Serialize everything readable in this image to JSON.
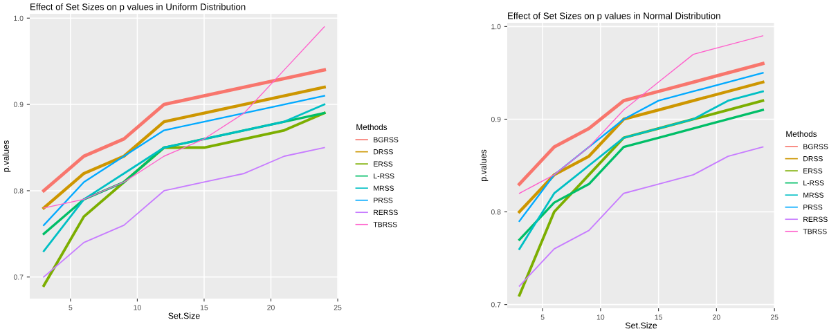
{
  "chart_data": [
    {
      "type": "line",
      "title": "Effect of Set Sizes on p values in Uniform Distribution",
      "xlabel": "Set.Size",
      "ylabel": "p.values",
      "legend_title": "Methods",
      "legend": "right",
      "grid": true,
      "x": [
        3,
        6,
        9,
        12,
        15,
        18,
        21,
        24
      ],
      "xlim": [
        1.95,
        25.05
      ],
      "xticks": [
        5,
        10,
        15,
        20,
        25
      ],
      "ylim": [
        0.675,
        1.005
      ],
      "yticks": [
        {
          "value": 0.7,
          "label": "0.7"
        },
        {
          "value": 0.8,
          "label": "0.8"
        },
        {
          "value": 0.9,
          "label": "0.9"
        },
        {
          "value": 1.0,
          "label": "1.0"
        }
      ],
      "series": [
        {
          "name": "BGRSS",
          "color": "#f8766d",
          "values": [
            0.8,
            0.84,
            0.86,
            0.9,
            0.91,
            0.92,
            0.93,
            0.94
          ]
        },
        {
          "name": "DRSS",
          "color": "#cd9600",
          "values": [
            0.78,
            0.82,
            0.84,
            0.88,
            0.89,
            0.9,
            0.91,
            0.92
          ]
        },
        {
          "name": "ERSS",
          "color": "#7cae00",
          "values": [
            0.69,
            0.77,
            0.81,
            0.85,
            0.85,
            0.86,
            0.87,
            0.89
          ]
        },
        {
          "name": "L-RSS",
          "color": "#00be67",
          "values": [
            0.75,
            0.79,
            0.81,
            0.85,
            0.86,
            0.87,
            0.88,
            0.89
          ]
        },
        {
          "name": "MRSS",
          "color": "#00bfc4",
          "values": [
            0.73,
            0.79,
            0.82,
            0.85,
            0.86,
            0.87,
            0.88,
            0.9
          ]
        },
        {
          "name": "PRSS",
          "color": "#00a9ff",
          "values": [
            0.76,
            0.81,
            0.84,
            0.87,
            0.88,
            0.89,
            0.9,
            0.91
          ]
        },
        {
          "name": "RERSS",
          "color": "#c77cff",
          "values": [
            0.7,
            0.74,
            0.76,
            0.8,
            0.81,
            0.82,
            0.84,
            0.85
          ]
        },
        {
          "name": "TBRSS",
          "color": "#ff61cc",
          "values": [
            0.78,
            0.79,
            0.81,
            0.84,
            0.86,
            0.89,
            0.94,
            0.99
          ]
        }
      ]
    },
    {
      "type": "line",
      "title": "Effect of Set Sizes on p values in Normal Distribution",
      "xlabel": "Set.Size",
      "ylabel": "p.values",
      "legend_title": "Methods",
      "legend": "right",
      "grid": true,
      "x": [
        3,
        6,
        9,
        12,
        15,
        18,
        21,
        24
      ],
      "xlim": [
        1.95,
        25.05
      ],
      "xticks": [
        5,
        10,
        15,
        20,
        25
      ],
      "ylim": [
        0.696,
        1.004
      ],
      "yticks": [
        {
          "value": 0.7,
          "label": "0.7"
        },
        {
          "value": 0.8,
          "label": "0.8"
        },
        {
          "value": 0.9,
          "label": "0.9"
        },
        {
          "value": 1.0,
          "label": "1.0"
        }
      ],
      "series": [
        {
          "name": "BGRSS",
          "color": "#f8766d",
          "values": [
            0.83,
            0.87,
            0.89,
            0.92,
            0.93,
            0.94,
            0.95,
            0.96
          ]
        },
        {
          "name": "DRSS",
          "color": "#cd9600",
          "values": [
            0.8,
            0.84,
            0.86,
            0.9,
            0.91,
            0.92,
            0.93,
            0.94
          ]
        },
        {
          "name": "ERSS",
          "color": "#7cae00",
          "values": [
            0.71,
            0.8,
            0.84,
            0.88,
            0.89,
            0.9,
            0.91,
            0.92
          ]
        },
        {
          "name": "L-RSS",
          "color": "#00be67",
          "values": [
            0.77,
            0.81,
            0.83,
            0.87,
            0.88,
            0.89,
            0.9,
            0.91
          ]
        },
        {
          "name": "MRSS",
          "color": "#00bfc4",
          "values": [
            0.76,
            0.82,
            0.85,
            0.88,
            0.89,
            0.9,
            0.92,
            0.93
          ]
        },
        {
          "name": "PRSS",
          "color": "#00a9ff",
          "values": [
            0.79,
            0.84,
            0.87,
            0.9,
            0.92,
            0.93,
            0.94,
            0.95
          ]
        },
        {
          "name": "RERSS",
          "color": "#c77cff",
          "values": [
            0.72,
            0.76,
            0.78,
            0.82,
            0.83,
            0.84,
            0.86,
            0.87
          ]
        },
        {
          "name": "TBRSS",
          "color": "#ff61cc",
          "values": [
            0.82,
            0.84,
            0.87,
            0.91,
            0.94,
            0.97,
            0.98,
            0.99
          ]
        }
      ]
    }
  ]
}
